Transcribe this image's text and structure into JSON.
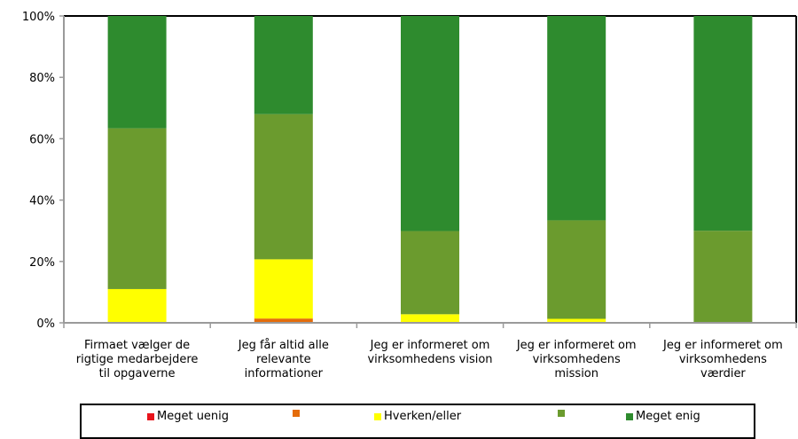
{
  "chart_data": {
    "type": "bar",
    "stacked": true,
    "categories": [
      [
        "Firmaet vælger de",
        "rigtige medarbejdere",
        "til opgaverne"
      ],
      [
        "Jeg får altid alle",
        "relevante",
        "informationer"
      ],
      [
        "Jeg er informeret om",
        "virksomhedens vision"
      ],
      [
        "Jeg er informeret om",
        "virksomhedens",
        "mission"
      ],
      [
        "Jeg er informeret om",
        "virksomhedens",
        "værdier"
      ]
    ],
    "series": [
      {
        "name": "Meget uenig",
        "color": "#e8141c",
        "values": [
          0,
          0,
          0,
          0,
          0
        ]
      },
      {
        "name": "",
        "color": "#e46c0a",
        "values": [
          0,
          1.4,
          0,
          0,
          0
        ]
      },
      {
        "name": "Hverken/eller",
        "color": "#ffff00",
        "values": [
          11,
          19.3,
          2.8,
          1.3,
          0
        ]
      },
      {
        "name": "",
        "color": "#6b9b2e",
        "values": [
          52.4,
          47.3,
          27.1,
          32.1,
          30
        ]
      },
      {
        "name": "Meget enig",
        "color": "#2e8b2e",
        "values": [
          36.6,
          32,
          70.1,
          66.6,
          70
        ]
      }
    ],
    "ylim": [
      0,
      100
    ],
    "yticks": [
      "0%",
      "20%",
      "40%",
      "60%",
      "80%",
      "100%"
    ],
    "xlabel": "",
    "ylabel": "",
    "title": "",
    "grid": false,
    "legend": "bottom"
  }
}
